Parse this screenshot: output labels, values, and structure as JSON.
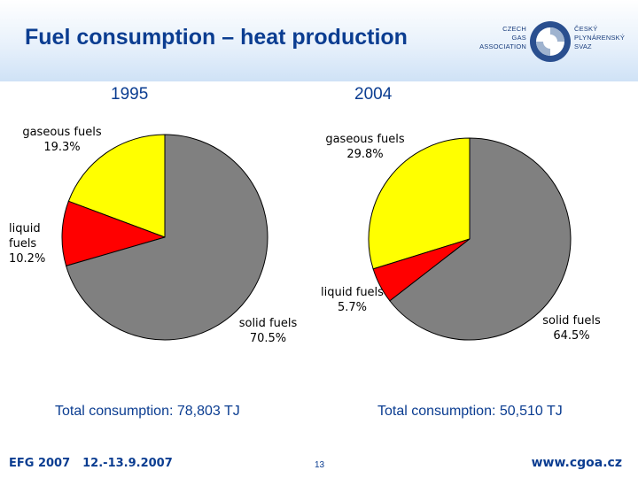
{
  "slide": {
    "title": "Fuel consumption – heat production",
    "logo": {
      "left_lines": [
        "CZECH",
        "GAS",
        "ASSOCIATION"
      ],
      "right_lines": [
        "ČESKÝ",
        "PLYNÁRENSKÝ",
        "SVAZ"
      ]
    }
  },
  "chart_data": [
    {
      "type": "pie",
      "title": "1995",
      "total_label": "Total consumption: 78,803 TJ",
      "slices": [
        {
          "name": "gaseous fuels",
          "value": 19.3,
          "value_label": "19.3%",
          "color": "#ffff00"
        },
        {
          "name": "liquid fuels",
          "value": 10.2,
          "value_label": "10.2%",
          "color": "#ff0000"
        },
        {
          "name": "solid fuels",
          "value": 70.5,
          "value_label": "70.5%",
          "color": "#808080"
        }
      ]
    },
    {
      "type": "pie",
      "title": "2004",
      "total_label": "Total consumption: 50,510 TJ",
      "slices": [
        {
          "name": "gaseous fuels",
          "value": 29.8,
          "value_label": "29.8%",
          "color": "#ffff00"
        },
        {
          "name": "liquid fuels",
          "value": 5.7,
          "value_label": "5.7%",
          "color": "#ff0000"
        },
        {
          "name": "solid fuels",
          "value": 64.5,
          "value_label": "64.5%",
          "color": "#808080"
        }
      ]
    }
  ],
  "footer": {
    "event": "EFG 2007",
    "dates": "12.-13.9.2007",
    "page": "13",
    "url": "www.cgoa.cz"
  }
}
